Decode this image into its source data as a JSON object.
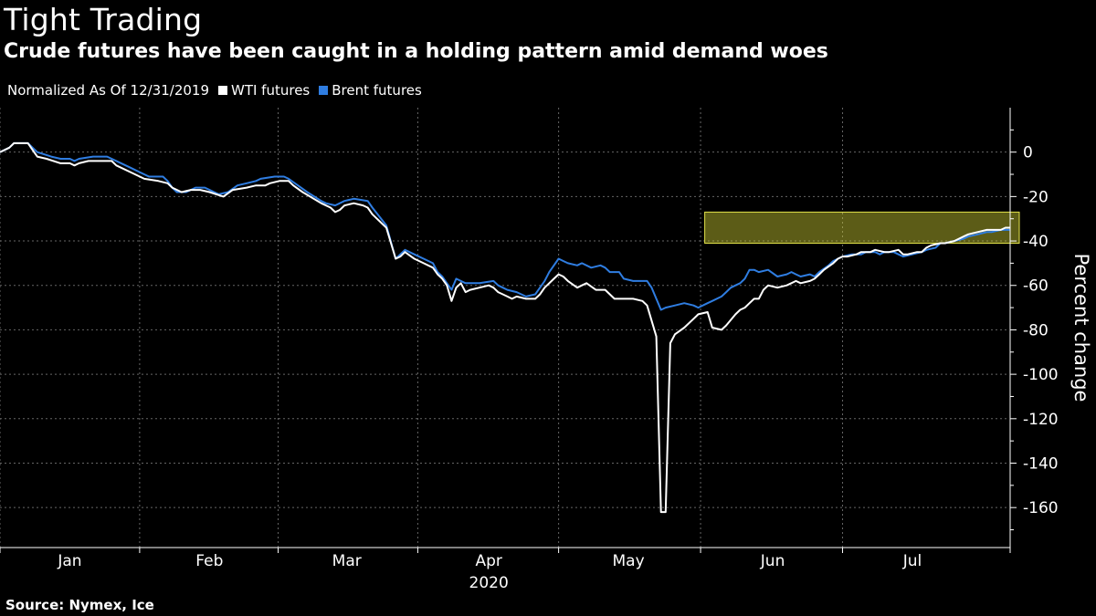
{
  "header": {
    "title": "Tight Trading",
    "subtitle": "Crude futures have been caught in a holding pattern amid demand woes"
  },
  "legend": {
    "note": "Normalized As Of 12/31/2019",
    "items": [
      {
        "label": "WTI futures",
        "color": "#ffffff"
      },
      {
        "label": "Brent futures",
        "color": "#2f7de1"
      }
    ]
  },
  "footer": {
    "source": "Source: Nymex, Ice"
  },
  "colors": {
    "background": "#000000",
    "wti": "#ffffff",
    "brent": "#2f7de1",
    "highlight_fill": "#cccc33",
    "highlight_stroke": "#e3e34a",
    "grid": "#666666"
  },
  "chart_data": {
    "type": "line",
    "title": "Tight Trading",
    "subtitle": "Crude futures have been caught in a holding pattern amid demand woes",
    "ylabel": "Percent change",
    "xlabel": "2020",
    "ylim": [
      -178,
      20
    ],
    "y_ticks": [
      0,
      -20,
      -40,
      -60,
      -80,
      -100,
      -120,
      -140,
      -160
    ],
    "x_ticks": [
      {
        "label": "Jan",
        "day": 15
      },
      {
        "label": "Feb",
        "day": 45
      },
      {
        "label": "Mar",
        "day": 74.5
      },
      {
        "label": "Apr",
        "day": 105
      },
      {
        "label": "May",
        "day": 135
      },
      {
        "label": "Jun",
        "day": 166
      },
      {
        "label": "Jul",
        "day": 196
      }
    ],
    "x_range": [
      0,
      217
    ],
    "grid": true,
    "legend_position": "top-left",
    "highlight": {
      "x_start": 151,
      "x_end": 217,
      "y_low": -41,
      "y_high": -27
    },
    "series": [
      {
        "name": "WTI futures",
        "color": "#ffffff",
        "points": [
          [
            0,
            0
          ],
          [
            2,
            2
          ],
          [
            3,
            4
          ],
          [
            6,
            4
          ],
          [
            7,
            1
          ],
          [
            8,
            -2
          ],
          [
            10,
            -3
          ],
          [
            13,
            -5
          ],
          [
            15,
            -5
          ],
          [
            16,
            -6
          ],
          [
            17,
            -5
          ],
          [
            19,
            -4
          ],
          [
            24,
            -4
          ],
          [
            25,
            -6
          ],
          [
            29,
            -10
          ],
          [
            31,
            -12
          ],
          [
            34,
            -13
          ],
          [
            36,
            -14
          ],
          [
            37,
            -16
          ],
          [
            39,
            -18
          ],
          [
            41,
            -17
          ],
          [
            43,
            -17
          ],
          [
            45,
            -18
          ],
          [
            48,
            -20
          ],
          [
            50,
            -17
          ],
          [
            53,
            -16
          ],
          [
            55,
            -15
          ],
          [
            57,
            -15
          ],
          [
            58,
            -14
          ],
          [
            60,
            -13
          ],
          [
            62,
            -13
          ],
          [
            63,
            -15
          ],
          [
            65,
            -18
          ],
          [
            69,
            -23
          ],
          [
            71,
            -25
          ],
          [
            72,
            -27
          ],
          [
            73,
            -26
          ],
          [
            74,
            -24
          ],
          [
            76,
            -23
          ],
          [
            78,
            -24
          ],
          [
            79,
            -25
          ],
          [
            80,
            -28
          ],
          [
            83,
            -34
          ],
          [
            85,
            -48
          ],
          [
            86,
            -47
          ],
          [
            87,
            -45
          ],
          [
            89,
            -48
          ],
          [
            91,
            -50
          ],
          [
            93,
            -52
          ],
          [
            94,
            -55
          ],
          [
            95,
            -57
          ],
          [
            96,
            -60
          ],
          [
            97,
            -67
          ],
          [
            98,
            -61
          ],
          [
            99,
            -59
          ],
          [
            100,
            -63
          ],
          [
            101,
            -62
          ],
          [
            103,
            -61
          ],
          [
            105,
            -60
          ],
          [
            106,
            -61
          ],
          [
            107,
            -63
          ],
          [
            108,
            -64
          ],
          [
            109,
            -65
          ],
          [
            110,
            -66
          ],
          [
            111,
            -65
          ],
          [
            113,
            -66
          ],
          [
            115,
            -66
          ],
          [
            116,
            -64
          ],
          [
            117,
            -61
          ],
          [
            119,
            -57
          ],
          [
            120,
            -55
          ],
          [
            121,
            -56
          ],
          [
            122,
            -58
          ],
          [
            124,
            -61
          ],
          [
            125,
            -60
          ],
          [
            126,
            -59
          ],
          [
            128,
            -62
          ],
          [
            130,
            -62
          ],
          [
            131,
            -64
          ],
          [
            132,
            -66
          ],
          [
            134,
            -66
          ],
          [
            136,
            -66
          ],
          [
            138,
            -67
          ],
          [
            139,
            -69
          ],
          [
            141,
            -83
          ],
          [
            142,
            -162
          ],
          [
            143,
            -162
          ],
          [
            144,
            -86
          ],
          [
            145,
            -82
          ],
          [
            147,
            -79
          ],
          [
            149,
            -75
          ],
          [
            150,
            -73
          ],
          [
            152,
            -72
          ],
          [
            153,
            -79
          ],
          [
            155,
            -80
          ],
          [
            156,
            -78
          ],
          [
            158,
            -73
          ],
          [
            159,
            -71
          ],
          [
            160,
            -70
          ],
          [
            161,
            -68
          ],
          [
            162,
            -66
          ],
          [
            163,
            -66
          ],
          [
            164,
            -62
          ],
          [
            165,
            -60
          ],
          [
            167,
            -61
          ],
          [
            169,
            -60
          ],
          [
            171,
            -58
          ],
          [
            172,
            -59
          ],
          [
            174,
            -58
          ],
          [
            175,
            -57
          ],
          [
            176,
            -55
          ],
          [
            177,
            -53
          ],
          [
            179,
            -50
          ],
          [
            180,
            -48
          ],
          [
            181,
            -47
          ],
          [
            182,
            -47
          ],
          [
            184,
            -46
          ],
          [
            185,
            -45
          ],
          [
            187,
            -45
          ],
          [
            188,
            -44
          ],
          [
            190,
            -45
          ],
          [
            191,
            -45
          ],
          [
            193,
            -44
          ],
          [
            194,
            -46
          ],
          [
            195,
            -46
          ],
          [
            197,
            -45
          ],
          [
            198,
            -45
          ],
          [
            199,
            -43
          ],
          [
            200,
            -42
          ],
          [
            202,
            -41
          ],
          [
            203,
            -41
          ],
          [
            205,
            -40
          ],
          [
            207,
            -38
          ],
          [
            208,
            -37
          ],
          [
            210,
            -36
          ],
          [
            212,
            -35
          ],
          [
            213,
            -35
          ],
          [
            215,
            -35
          ],
          [
            216,
            -34
          ],
          [
            217,
            -34
          ]
        ]
      },
      {
        "name": "Brent futures",
        "color": "#2f7de1",
        "points": [
          [
            0,
            0
          ],
          [
            2,
            2
          ],
          [
            3,
            4
          ],
          [
            6,
            4
          ],
          [
            7,
            2
          ],
          [
            8,
            0
          ],
          [
            11,
            -2
          ],
          [
            13,
            -3
          ],
          [
            15,
            -3
          ],
          [
            16,
            -4
          ],
          [
            17,
            -3
          ],
          [
            20,
            -2
          ],
          [
            23,
            -2
          ],
          [
            25,
            -4
          ],
          [
            28,
            -7
          ],
          [
            30,
            -9
          ],
          [
            32,
            -11
          ],
          [
            34,
            -11
          ],
          [
            35,
            -11
          ],
          [
            36,
            -13
          ],
          [
            37,
            -16
          ],
          [
            38,
            -18
          ],
          [
            40,
            -18
          ],
          [
            42,
            -16
          ],
          [
            44,
            -16
          ],
          [
            47,
            -19
          ],
          [
            49,
            -18
          ],
          [
            51,
            -15
          ],
          [
            53,
            -14
          ],
          [
            55,
            -13
          ],
          [
            56,
            -12
          ],
          [
            59,
            -11
          ],
          [
            61,
            -11
          ],
          [
            62,
            -12
          ],
          [
            64,
            -15
          ],
          [
            66,
            -18
          ],
          [
            69,
            -22
          ],
          [
            70,
            -23
          ],
          [
            72,
            -24
          ],
          [
            74,
            -22
          ],
          [
            76,
            -21
          ],
          [
            79,
            -22
          ],
          [
            80,
            -25
          ],
          [
            83,
            -33
          ],
          [
            85,
            -48
          ],
          [
            86,
            -46
          ],
          [
            87,
            -44
          ],
          [
            89,
            -46
          ],
          [
            91,
            -48
          ],
          [
            93,
            -50
          ],
          [
            94,
            -54
          ],
          [
            95,
            -56
          ],
          [
            96,
            -59
          ],
          [
            97,
            -62
          ],
          [
            98,
            -57
          ],
          [
            99,
            -58
          ],
          [
            100,
            -59
          ],
          [
            103,
            -59
          ],
          [
            106,
            -58
          ],
          [
            107,
            -60
          ],
          [
            108,
            -61
          ],
          [
            109,
            -62
          ],
          [
            111,
            -63
          ],
          [
            113,
            -65
          ],
          [
            115,
            -64
          ],
          [
            116,
            -61
          ],
          [
            117,
            -58
          ],
          [
            118,
            -54
          ],
          [
            120,
            -48
          ],
          [
            121,
            -49
          ],
          [
            122,
            -50
          ],
          [
            124,
            -51
          ],
          [
            125,
            -50
          ],
          [
            127,
            -52
          ],
          [
            129,
            -51
          ],
          [
            130,
            -52
          ],
          [
            131,
            -54
          ],
          [
            133,
            -54
          ],
          [
            134,
            -57
          ],
          [
            136,
            -58
          ],
          [
            138,
            -58
          ],
          [
            139,
            -58
          ],
          [
            140,
            -61
          ],
          [
            141,
            -66
          ],
          [
            142,
            -71
          ],
          [
            143,
            -70
          ],
          [
            145,
            -69
          ],
          [
            147,
            -68
          ],
          [
            149,
            -69
          ],
          [
            150,
            -70
          ],
          [
            152,
            -68
          ],
          [
            153,
            -67
          ],
          [
            155,
            -65
          ],
          [
            156,
            -63
          ],
          [
            157,
            -61
          ],
          [
            158,
            -60
          ],
          [
            159,
            -59
          ],
          [
            160,
            -57
          ],
          [
            161,
            -53
          ],
          [
            162,
            -53
          ],
          [
            163,
            -54
          ],
          [
            165,
            -53
          ],
          [
            167,
            -56
          ],
          [
            169,
            -55
          ],
          [
            170,
            -54
          ],
          [
            171,
            -55
          ],
          [
            172,
            -56
          ],
          [
            174,
            -55
          ],
          [
            175,
            -56
          ],
          [
            176,
            -54
          ],
          [
            178,
            -51
          ],
          [
            179,
            -49
          ],
          [
            181,
            -47
          ],
          [
            183,
            -46
          ],
          [
            185,
            -46
          ],
          [
            186,
            -45
          ],
          [
            188,
            -45
          ],
          [
            189,
            -46
          ],
          [
            190,
            -45
          ],
          [
            192,
            -45
          ],
          [
            193,
            -46
          ],
          [
            194,
            -47
          ],
          [
            196,
            -46
          ],
          [
            198,
            -45
          ],
          [
            199,
            -44
          ],
          [
            201,
            -43
          ],
          [
            202,
            -41
          ],
          [
            203,
            -41
          ],
          [
            205,
            -40
          ],
          [
            207,
            -39
          ],
          [
            208,
            -38
          ],
          [
            210,
            -37
          ],
          [
            212,
            -36
          ],
          [
            213,
            -36
          ],
          [
            215,
            -35
          ],
          [
            216,
            -35
          ],
          [
            217,
            -35
          ]
        ]
      }
    ]
  }
}
